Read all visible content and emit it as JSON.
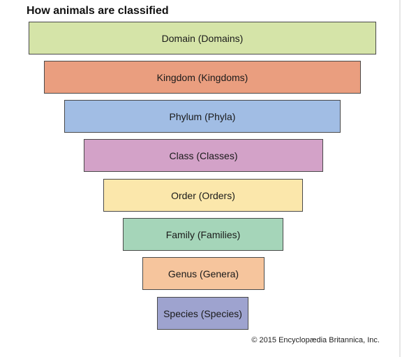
{
  "title": "How animals are classified",
  "levels": [
    {
      "label": "Domain (Domains)",
      "color": "#d5e4a8"
    },
    {
      "label": "Kingdom (Kingdoms)",
      "color": "#ea9e7f"
    },
    {
      "label": "Phylum (Phyla)",
      "color": "#a1bde4"
    },
    {
      "label": "Class (Classes)",
      "color": "#d3a2c8"
    },
    {
      "label": "Order (Orders)",
      "color": "#fbe7ab"
    },
    {
      "label": "Family (Families)",
      "color": "#a5d5b9"
    },
    {
      "label": "Genus (Genera)",
      "color": "#f6c59d"
    },
    {
      "label": "Species (Species)",
      "color": "#9ea3cf"
    }
  ],
  "copyright": "© 2015 Encyclopædia Britannica, Inc."
}
